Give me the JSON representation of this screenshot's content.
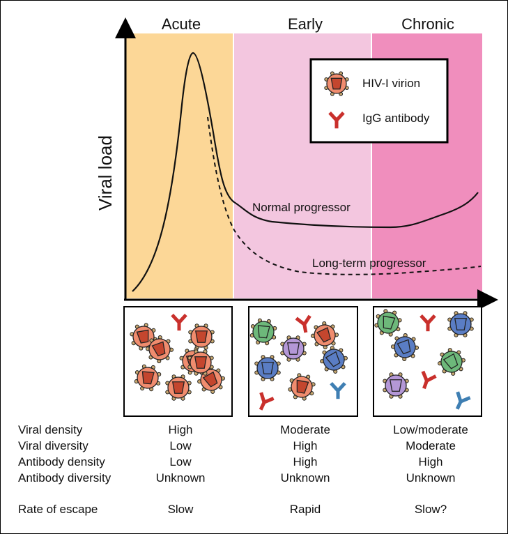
{
  "phases": [
    {
      "label": "Acute",
      "color": "#fcd797"
    },
    {
      "label": "Early",
      "color": "#f3c6df"
    },
    {
      "label": "Chronic",
      "color": "#f08ebd"
    }
  ],
  "y_axis_label": "Viral load",
  "curves": {
    "normal_label": "Normal progressor",
    "longterm_label": "Long-term progressor"
  },
  "legend": {
    "virion_label": "HIV-I virion",
    "antibody_label": "IgG antibody"
  },
  "colors": {
    "virion_orange": "#f08c6e",
    "virion_green": "#6db87a",
    "virion_blue": "#5a7dc4",
    "virion_purple": "#b497d6",
    "capsid_red": "#c4462e",
    "antibody_red": "#c9302c",
    "antibody_blue": "#3f7fb3",
    "spike": "#c8a870"
  },
  "panels": [
    {
      "name": "acute",
      "virions": [
        {
          "fill": "orange"
        },
        {
          "fill": "orange"
        },
        {
          "fill": "orange"
        },
        {
          "fill": "orange"
        },
        {
          "fill": "orange"
        },
        {
          "fill": "orange"
        },
        {
          "fill": "orange"
        },
        {
          "fill": "orange"
        }
      ],
      "antibodies": [
        {
          "color": "red"
        }
      ]
    },
    {
      "name": "early",
      "virions": [
        {
          "fill": "green"
        },
        {
          "fill": "orange"
        },
        {
          "fill": "purple"
        },
        {
          "fill": "blue"
        },
        {
          "fill": "blue"
        },
        {
          "fill": "orange"
        }
      ],
      "antibodies": [
        {
          "color": "red"
        },
        {
          "color": "red"
        },
        {
          "color": "blue"
        }
      ]
    },
    {
      "name": "chronic",
      "virions": [
        {
          "fill": "green"
        },
        {
          "fill": "blue"
        },
        {
          "fill": "blue"
        },
        {
          "fill": "green"
        },
        {
          "fill": "purple"
        }
      ],
      "antibodies": [
        {
          "color": "red"
        },
        {
          "color": "red"
        },
        {
          "color": "blue"
        }
      ]
    }
  ],
  "table": {
    "rows": [
      {
        "label": "Viral density",
        "values": [
          "High",
          "Moderate",
          "Low/moderate"
        ]
      },
      {
        "label": "Viral diversity",
        "values": [
          "Low",
          "High",
          "Moderate"
        ]
      },
      {
        "label": "Antibody density",
        "values": [
          "Low",
          "High",
          "High"
        ]
      },
      {
        "label": "Antibody diversity",
        "values": [
          "Unknown",
          "Unknown",
          "Unknown"
        ]
      },
      {
        "label": "Rate of escape",
        "values": [
          "Slow",
          "Rapid",
          "Slow?"
        ]
      }
    ]
  }
}
